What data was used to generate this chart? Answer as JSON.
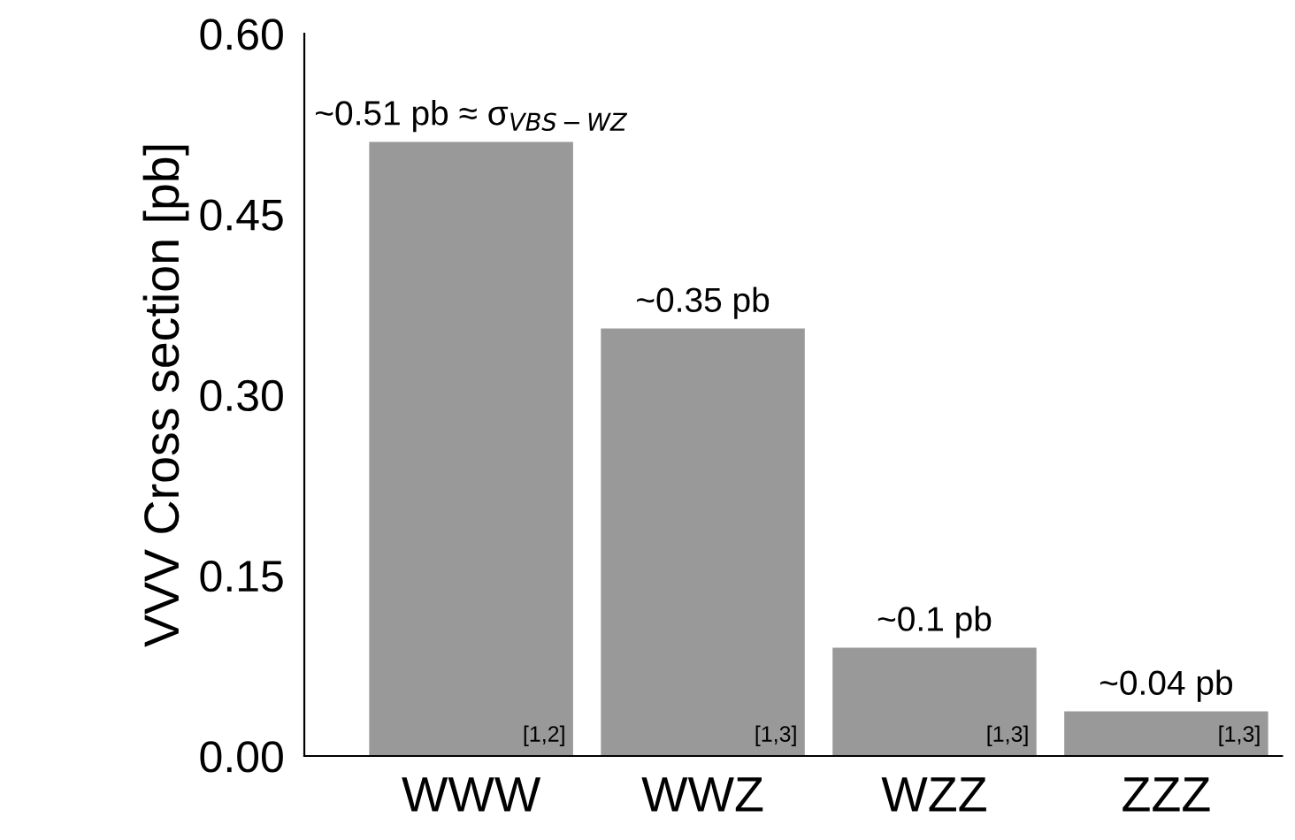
{
  "chart_data": {
    "type": "bar",
    "ylabel": "VVV Cross section [pb]",
    "categories": [
      "WWW",
      "WWZ",
      "WZZ",
      "ZZZ"
    ],
    "values": [
      0.51,
      0.355,
      0.09,
      0.037
    ],
    "value_labels": [
      "~0.51 pb ≈ σ$_{VBS−WZ}$",
      "~0.35 pb",
      "~0.1 pb",
      "~0.04 pb"
    ],
    "color": "#999999",
    "ylim": [
      0,
      0.6
    ],
    "yticks": [
      {
        "value": 0,
        "label": "0.00"
      },
      {
        "value": 0.15,
        "label": "0.15"
      },
      {
        "value": 0.3,
        "label": "0.30"
      },
      {
        "value": 0.45,
        "label": "0.45"
      },
      {
        "value": 0.6,
        "label": "0.60"
      }
    ],
    "grid": false,
    "annotations": [
      "[1,2]",
      "[1,3]",
      "[1,3]",
      "[1,3]"
    ]
  }
}
